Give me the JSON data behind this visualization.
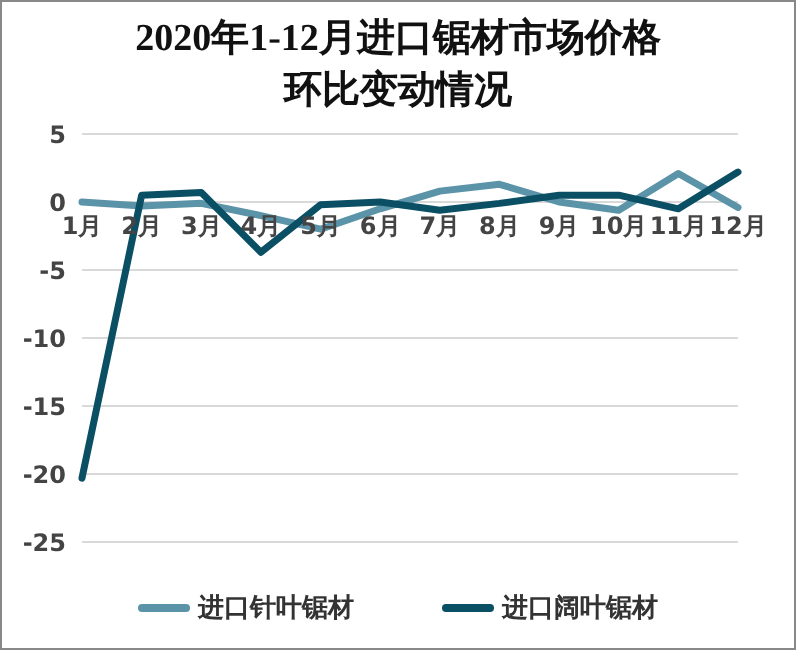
{
  "chart_data": {
    "type": "line",
    "title": "2020年1-12月进口锯材市场价格环比变动情况",
    "categories": [
      "1月",
      "2月",
      "3月",
      "4月",
      "5月",
      "6月",
      "7月",
      "8月",
      "9月",
      "10月",
      "11月",
      "12月"
    ],
    "series": [
      {
        "name": "进口针叶锯材",
        "color": "#5b93a8",
        "values": [
          0,
          -0.3,
          -0.1,
          -1,
          -2,
          -0.5,
          0.8,
          1.3,
          0,
          -0.6,
          2.1,
          -0.4
        ]
      },
      {
        "name": "进口阔叶锯材",
        "color": "#0b4f64",
        "values": [
          -20.3,
          0.5,
          0.7,
          -3.7,
          -0.2,
          0,
          -0.6,
          -0.1,
          0.5,
          0.5,
          -0.5,
          2.2
        ]
      }
    ],
    "ylim": [
      -25,
      5
    ],
    "yticks": [
      -25,
      -20,
      -15,
      -10,
      -5,
      0,
      5
    ],
    "grid": "y",
    "legend": "bottom",
    "marker": "none",
    "line_style": "solid"
  }
}
